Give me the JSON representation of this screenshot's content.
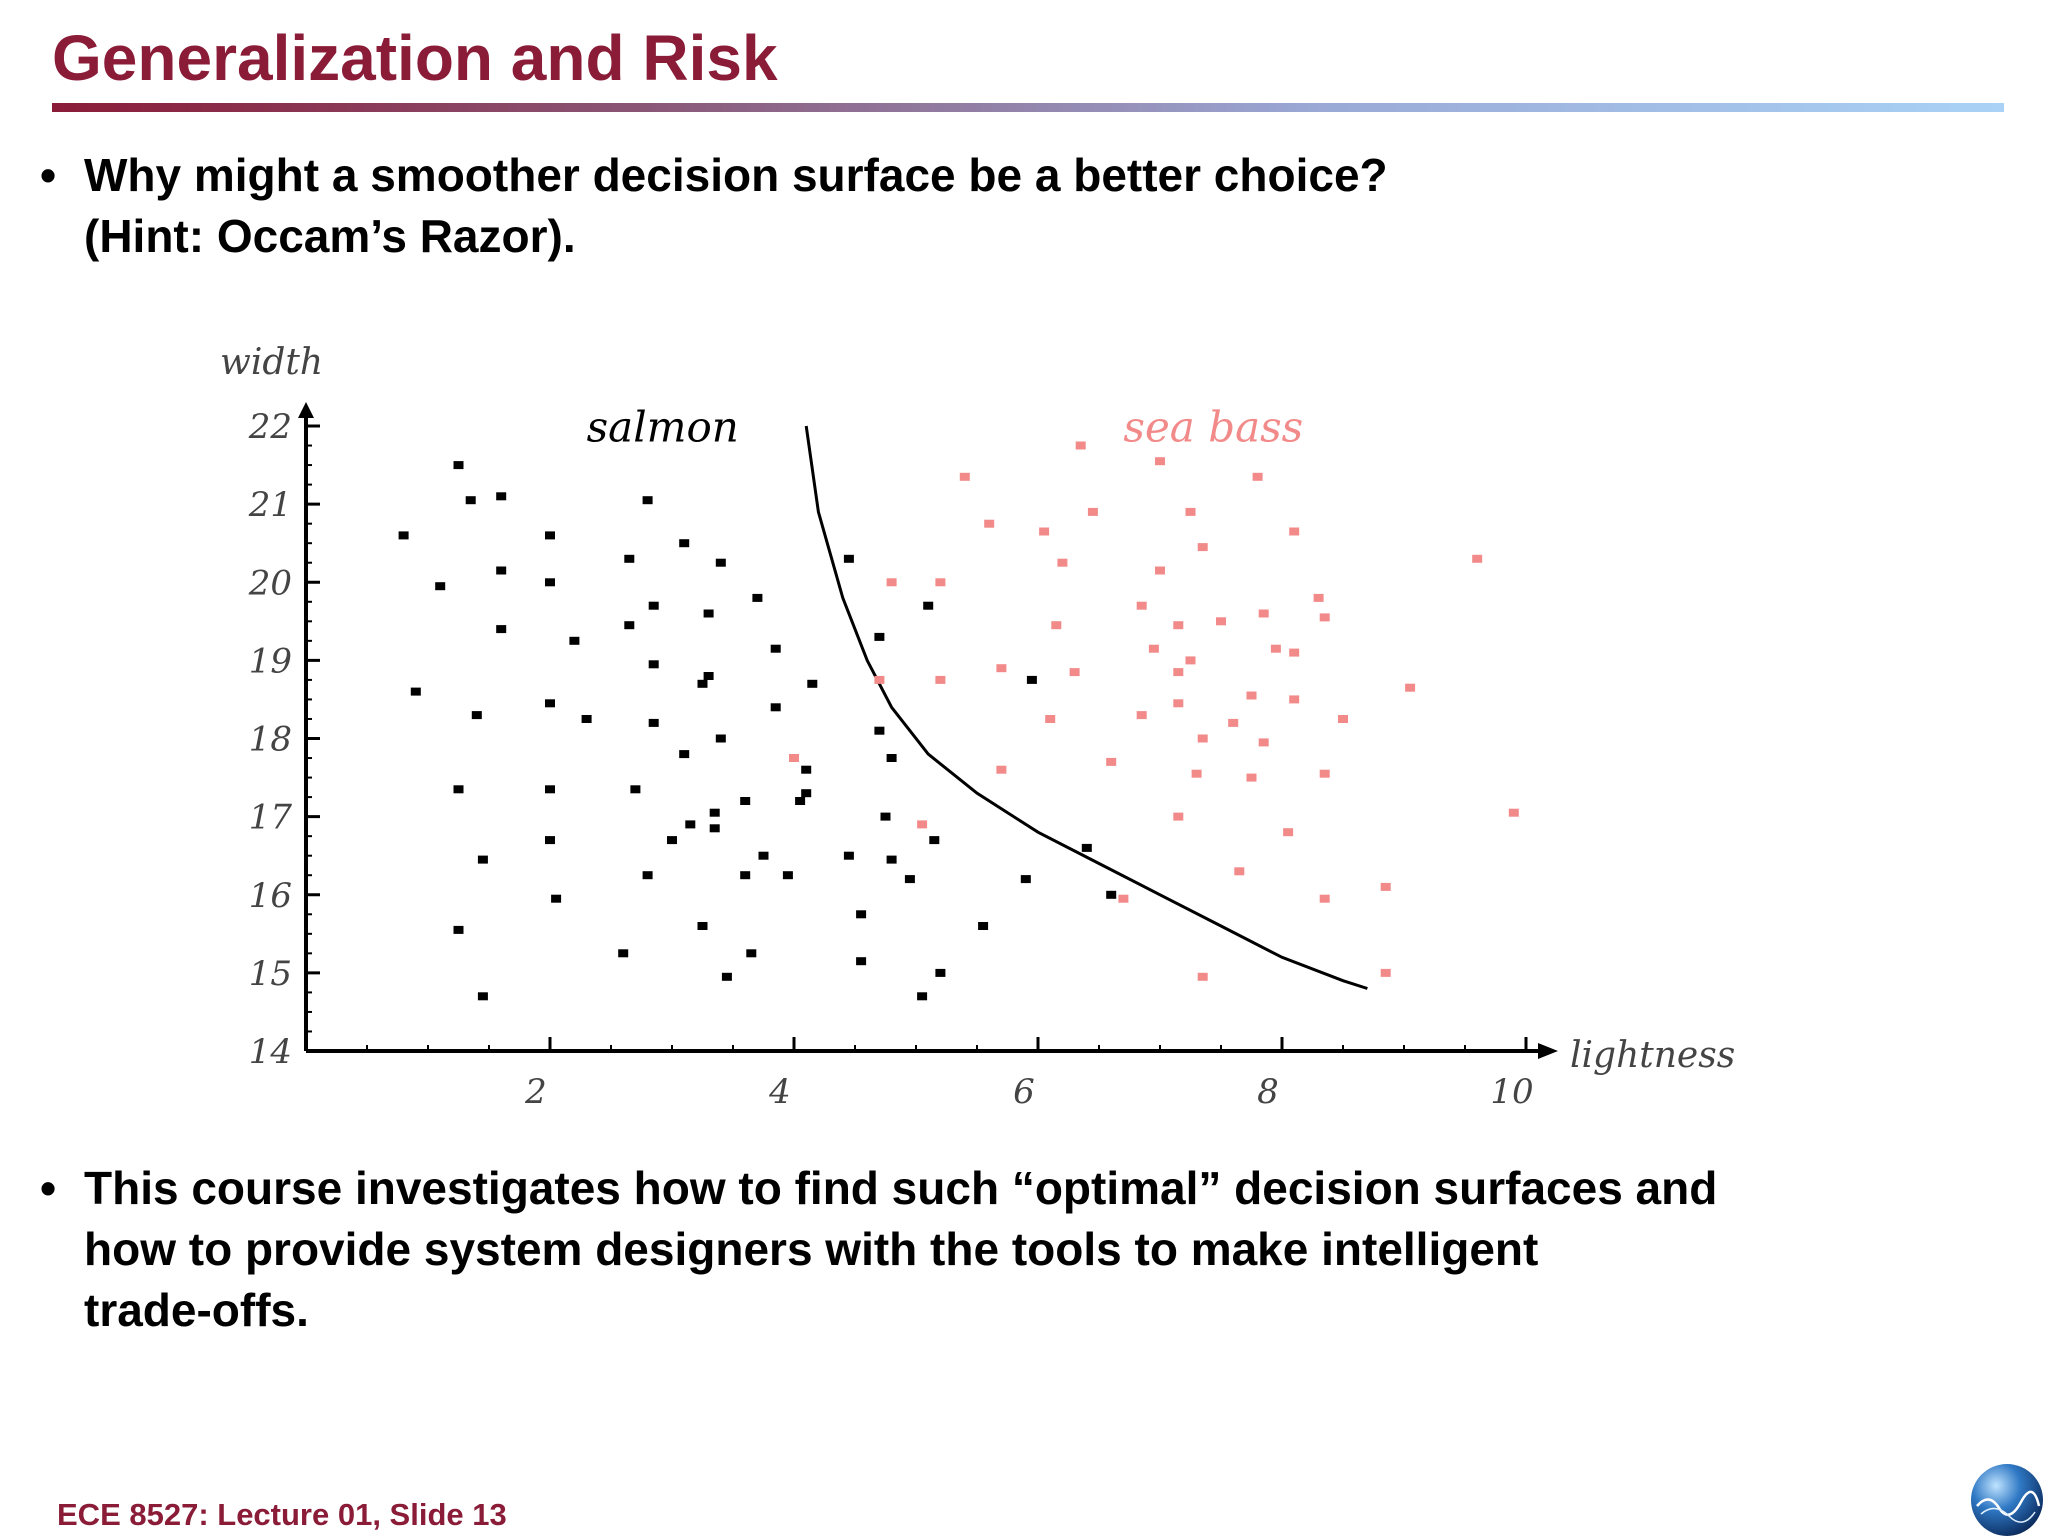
{
  "slide": {
    "title": "Generalization and Risk",
    "footer": "ECE 8527: Lecture 01, Slide 13",
    "bullets": [
      {
        "lines": [
          "Why might a smoother decision surface be a better choice?",
          "(Hint: Occam’s Razor)."
        ]
      },
      {
        "lines": [
          "This course investigates how to find such “optimal” decision surfaces and",
          "how to provide system designers with the tools to make intelligent",
          "trade-offs."
        ]
      }
    ],
    "bullet_glyph": "•",
    "colors": {
      "title": "#8a1c38",
      "salmon": "#000000",
      "sea_bass": "#f28a8a",
      "footer": "#8a1c38"
    },
    "logo_icon": "globe-icon"
  },
  "chart_data": {
    "type": "scatter",
    "xlabel": "lightness",
    "ylabel": "width",
    "xlim": [
      0,
      10
    ],
    "ylim": [
      14,
      22
    ],
    "x_ticks": [
      2,
      4,
      6,
      8,
      10
    ],
    "y_ticks": [
      14,
      15,
      16,
      17,
      18,
      19,
      20,
      21,
      22
    ],
    "annotations": [
      {
        "text": "salmon",
        "x": 2.3,
        "y": 21.8,
        "color": "#000000"
      },
      {
        "text": "sea bass",
        "x": 6.7,
        "y": 21.8,
        "color": "#f28a8a"
      }
    ],
    "decision_boundary": [
      [
        4.1,
        22.0
      ],
      [
        4.2,
        20.9
      ],
      [
        4.4,
        19.8
      ],
      [
        4.6,
        19.0
      ],
      [
        4.8,
        18.4
      ],
      [
        5.1,
        17.8
      ],
      [
        5.5,
        17.3
      ],
      [
        6.0,
        16.8
      ],
      [
        6.5,
        16.4
      ],
      [
        7.0,
        16.0
      ],
      [
        7.5,
        15.6
      ],
      [
        8.0,
        15.2
      ],
      [
        8.5,
        14.9
      ],
      [
        8.7,
        14.8
      ]
    ],
    "series": [
      {
        "name": "salmon",
        "color": "#000000",
        "points": [
          [
            1.25,
            21.5
          ],
          [
            1.35,
            21.05
          ],
          [
            1.6,
            21.1
          ],
          [
            0.8,
            20.6
          ],
          [
            1.1,
            19.95
          ],
          [
            1.6,
            20.15
          ],
          [
            1.6,
            19.4
          ],
          [
            0.9,
            18.6
          ],
          [
            1.4,
            18.3
          ],
          [
            1.25,
            17.35
          ],
          [
            1.45,
            16.45
          ],
          [
            1.25,
            15.55
          ],
          [
            1.45,
            14.7
          ],
          [
            2.0,
            20.6
          ],
          [
            2.0,
            20.0
          ],
          [
            2.2,
            19.25
          ],
          [
            2.0,
            18.45
          ],
          [
            2.3,
            18.25
          ],
          [
            2.0,
            17.35
          ],
          [
            2.0,
            16.7
          ],
          [
            2.05,
            15.95
          ],
          [
            2.8,
            21.05
          ],
          [
            3.1,
            20.5
          ],
          [
            2.65,
            20.3
          ],
          [
            2.85,
            19.7
          ],
          [
            2.65,
            19.45
          ],
          [
            2.85,
            18.95
          ],
          [
            3.4,
            20.25
          ],
          [
            3.3,
            19.6
          ],
          [
            3.3,
            18.8
          ],
          [
            3.25,
            18.7
          ],
          [
            2.85,
            18.2
          ],
          [
            2.7,
            17.35
          ],
          [
            3.1,
            17.8
          ],
          [
            2.8,
            16.25
          ],
          [
            3.0,
            16.7
          ],
          [
            3.15,
            16.9
          ],
          [
            3.35,
            16.85
          ],
          [
            3.35,
            17.05
          ],
          [
            3.4,
            18.0
          ],
          [
            3.25,
            15.6
          ],
          [
            3.6,
            17.2
          ],
          [
            3.75,
            16.5
          ],
          [
            3.6,
            16.25
          ],
          [
            3.95,
            16.25
          ],
          [
            3.65,
            15.25
          ],
          [
            3.45,
            14.95
          ],
          [
            2.6,
            15.25
          ],
          [
            3.7,
            19.8
          ],
          [
            3.85,
            19.15
          ],
          [
            3.85,
            18.4
          ],
          [
            4.15,
            18.7
          ],
          [
            4.1,
            17.6
          ],
          [
            4.1,
            17.3
          ],
          [
            4.05,
            17.2
          ],
          [
            4.45,
            20.3
          ],
          [
            4.45,
            16.5
          ],
          [
            4.55,
            15.75
          ],
          [
            4.55,
            15.15
          ],
          [
            4.7,
            19.3
          ],
          [
            4.7,
            18.1
          ],
          [
            4.75,
            17.0
          ],
          [
            4.8,
            16.45
          ],
          [
            4.8,
            17.75
          ],
          [
            4.95,
            16.2
          ],
          [
            5.1,
            19.7
          ],
          [
            5.15,
            16.7
          ],
          [
            5.2,
            15.0
          ],
          [
            5.05,
            14.7
          ],
          [
            5.55,
            15.6
          ],
          [
            5.9,
            16.2
          ],
          [
            5.95,
            18.75
          ],
          [
            6.4,
            16.6
          ],
          [
            6.6,
            16.0
          ]
        ]
      },
      {
        "name": "sea bass",
        "color": "#f28a8a",
        "points": [
          [
            5.4,
            21.35
          ],
          [
            6.35,
            21.75
          ],
          [
            7.0,
            21.55
          ],
          [
            7.8,
            21.35
          ],
          [
            5.6,
            20.75
          ],
          [
            6.05,
            20.65
          ],
          [
            6.45,
            20.9
          ],
          [
            6.2,
            20.25
          ],
          [
            7.25,
            20.9
          ],
          [
            7.35,
            20.45
          ],
          [
            8.1,
            20.65
          ],
          [
            4.8,
            20.0
          ],
          [
            5.2,
            20.0
          ],
          [
            7.0,
            20.15
          ],
          [
            8.3,
            19.8
          ],
          [
            8.35,
            19.55
          ],
          [
            9.6,
            20.3
          ],
          [
            6.15,
            19.45
          ],
          [
            6.85,
            19.7
          ],
          [
            7.15,
            19.45
          ],
          [
            7.5,
            19.5
          ],
          [
            7.85,
            19.6
          ],
          [
            7.95,
            19.15
          ],
          [
            8.1,
            19.1
          ],
          [
            6.95,
            19.15
          ],
          [
            7.25,
            19.0
          ],
          [
            7.15,
            18.85
          ],
          [
            5.7,
            18.9
          ],
          [
            6.3,
            18.85
          ],
          [
            4.7,
            18.75
          ],
          [
            5.2,
            18.75
          ],
          [
            7.15,
            18.45
          ],
          [
            6.85,
            18.3
          ],
          [
            7.35,
            18.0
          ],
          [
            7.6,
            18.2
          ],
          [
            7.75,
            18.55
          ],
          [
            7.85,
            17.95
          ],
          [
            8.1,
            18.5
          ],
          [
            8.5,
            18.25
          ],
          [
            9.05,
            18.65
          ],
          [
            6.1,
            18.25
          ],
          [
            4.0,
            17.75
          ],
          [
            5.7,
            17.6
          ],
          [
            6.6,
            17.7
          ],
          [
            7.3,
            17.55
          ],
          [
            7.75,
            17.5
          ],
          [
            8.35,
            17.55
          ],
          [
            7.15,
            17.0
          ],
          [
            8.05,
            16.8
          ],
          [
            5.05,
            16.9
          ],
          [
            7.65,
            16.3
          ],
          [
            6.7,
            15.95
          ],
          [
            8.35,
            15.95
          ],
          [
            8.85,
            16.1
          ],
          [
            9.9,
            17.05
          ],
          [
            7.35,
            14.95
          ],
          [
            8.85,
            15.0
          ]
        ]
      }
    ]
  }
}
